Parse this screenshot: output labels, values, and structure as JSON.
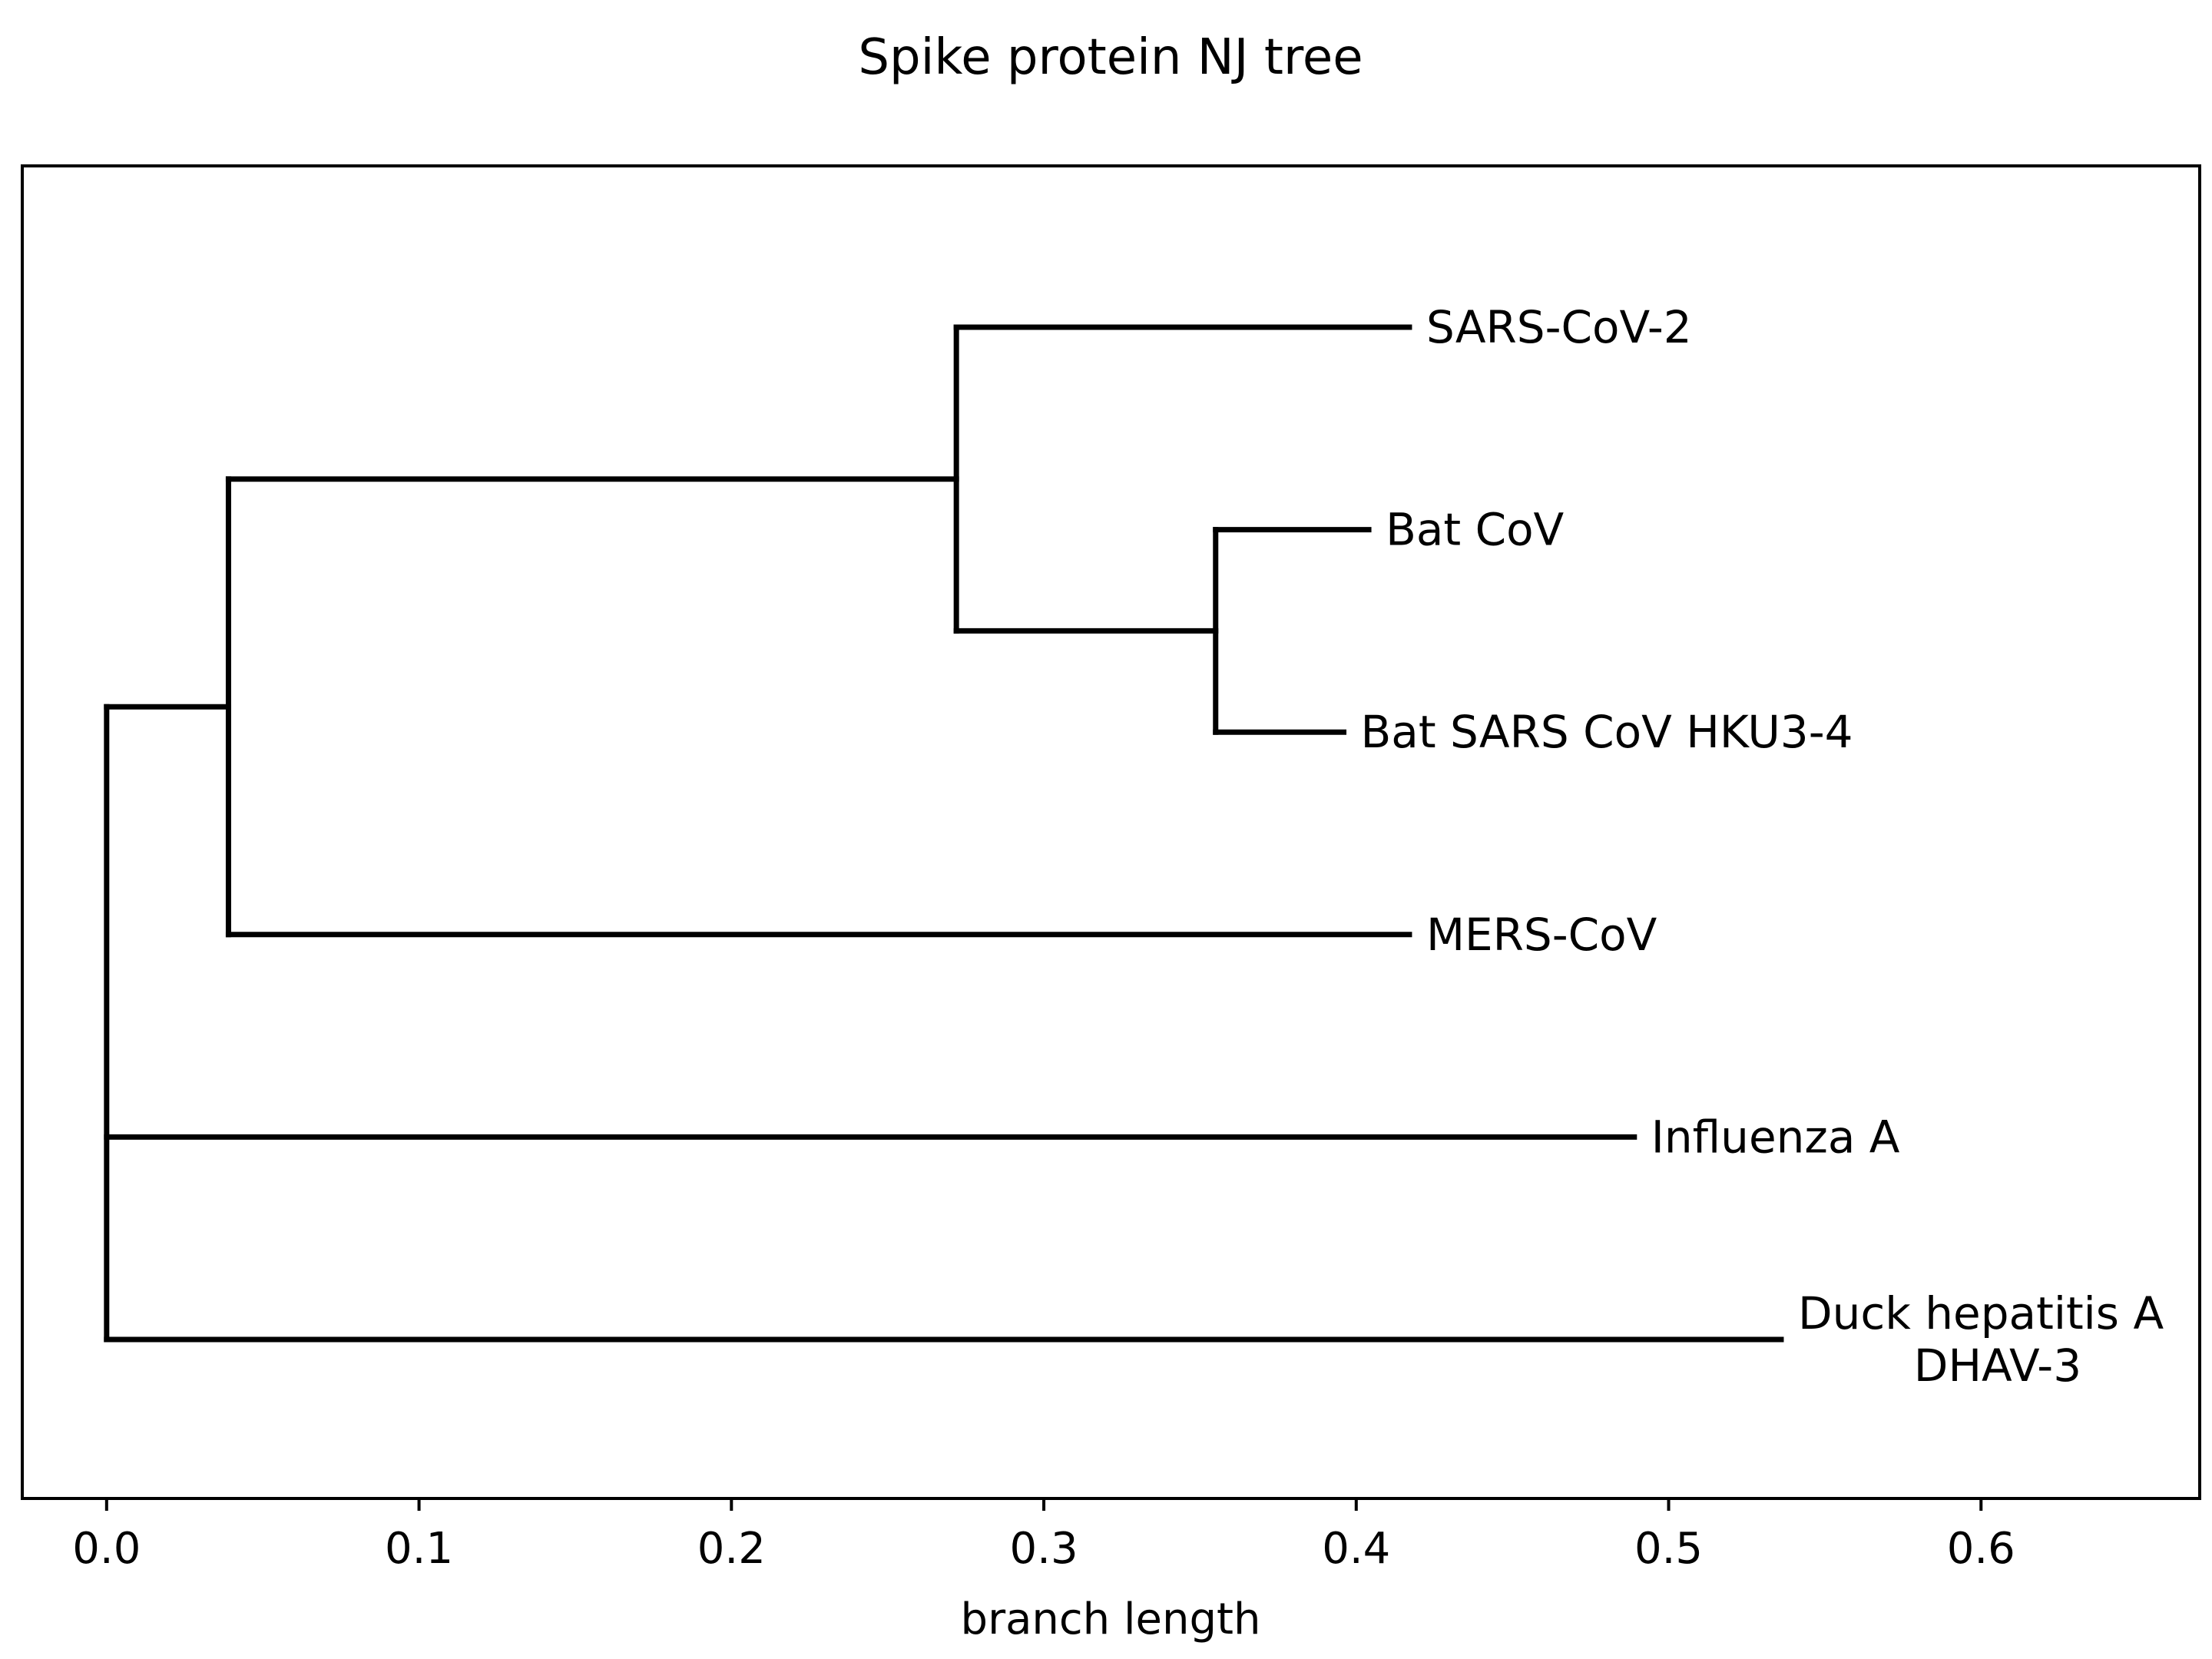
{
  "chart_data": {
    "type": "phylogenetic-tree",
    "title": "Spike protein NJ tree",
    "xlabel": "branch length",
    "xlim": [
      -0.027,
      0.67
    ],
    "xticks": [
      0.0,
      0.1,
      0.2,
      0.3,
      0.4,
      0.5,
      0.6
    ],
    "xtick_labels": [
      "0.0",
      "0.1",
      "0.2",
      "0.3",
      "0.4",
      "0.5",
      "0.6"
    ],
    "grid": false,
    "line_color": "#000000",
    "leaves": [
      {
        "id": "sars2",
        "label_lines": [
          "SARS-CoV-2"
        ],
        "x": 0.417
      },
      {
        "id": "batcov",
        "label_lines": [
          "Bat CoV"
        ],
        "x": 0.404
      },
      {
        "id": "hku3",
        "label_lines": [
          "Bat SARS CoV HKU3-4"
        ],
        "x": 0.396
      },
      {
        "id": "mers",
        "label_lines": [
          "MERS-CoV"
        ],
        "x": 0.417
      },
      {
        "id": "flu",
        "label_lines": [
          "Influenza A"
        ],
        "x": 0.489
      },
      {
        "id": "dhav",
        "label_lines": [
          "Duck hepatitis A",
          "DHAV-3"
        ],
        "x": 0.536
      }
    ],
    "internal_nodes": [
      {
        "id": "root",
        "x": 0.0,
        "children": [
          "n1",
          "flu",
          "dhav"
        ]
      },
      {
        "id": "n1",
        "x": 0.039,
        "children": [
          "n2",
          "mers"
        ]
      },
      {
        "id": "n2",
        "x": 0.272,
        "children": [
          "sars2",
          "n3"
        ]
      },
      {
        "id": "n3",
        "x": 0.355,
        "children": [
          "batcov",
          "hku3"
        ]
      }
    ]
  }
}
